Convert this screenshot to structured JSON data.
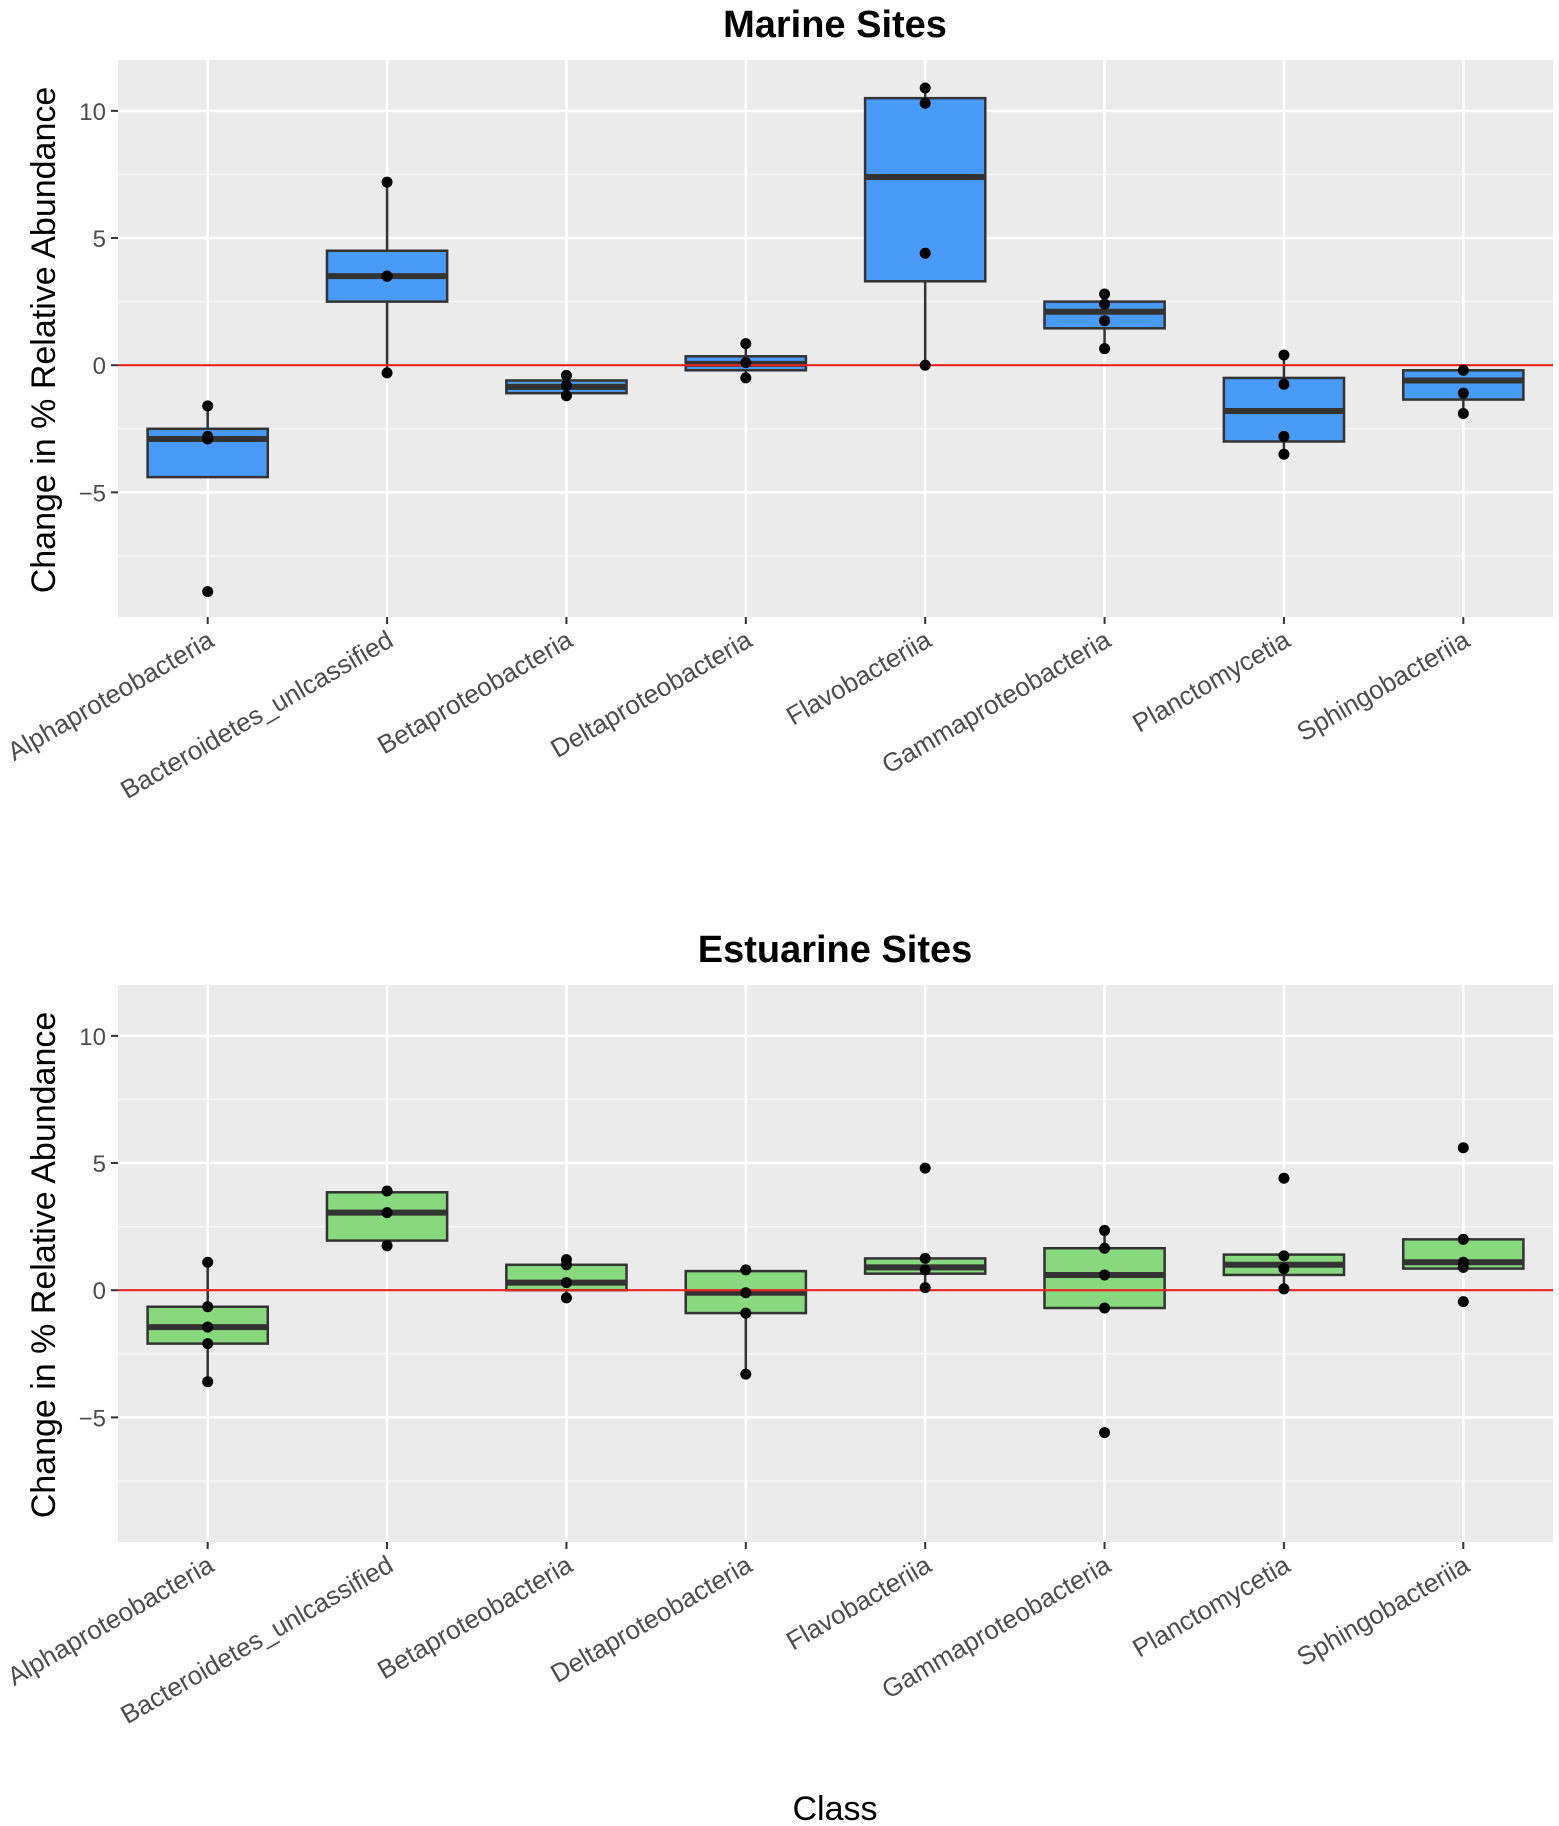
{
  "chart_data": [
    {
      "type": "box",
      "title": "Marine Sites",
      "xlabel": "",
      "ylabel": "Change in % Relative Abundance",
      "ylim": [
        -9.9,
        12
      ],
      "yticks": [
        -5,
        0,
        5,
        10
      ],
      "yticklabels": [
        "−5",
        "0",
        "5",
        "10"
      ],
      "reference_line": 0,
      "reference_color": "#e8231f",
      "fill_color": "#4a9bf7",
      "categories": [
        "Alphaproteobacteria",
        "Bacteroidetes_unlcassified",
        "Betaproteobacteria",
        "Deltaproteobacteria",
        "Flavobacteriia",
        "Gammaproteobacteria",
        "Planctomycetia",
        "Sphingobacteriia"
      ],
      "boxes": [
        {
          "q1": -4.4,
          "median": -2.9,
          "q3": -2.5,
          "whisker_low": -4.4,
          "whisker_high": -1.6,
          "points": [
            -1.6,
            -2.8,
            -2.9,
            -8.9
          ]
        },
        {
          "q1": 2.5,
          "median": 3.5,
          "q3": 4.5,
          "whisker_low": -0.3,
          "whisker_high": 7.2,
          "points": [
            7.2,
            3.5,
            3.5,
            -0.3
          ]
        },
        {
          "q1": -1.1,
          "median": -0.85,
          "q3": -0.6,
          "whisker_low": -1.2,
          "whisker_high": -0.4,
          "points": [
            -0.4,
            -0.8,
            -1.2
          ]
        },
        {
          "q1": -0.2,
          "median": 0.05,
          "q3": 0.35,
          "whisker_low": -0.5,
          "whisker_high": 0.85,
          "points": [
            0.85,
            0.1,
            -0.5
          ]
        },
        {
          "q1": 3.3,
          "median": 7.4,
          "q3": 10.5,
          "whisker_low": 0.0,
          "whisker_high": 10.9,
          "points": [
            10.9,
            10.3,
            4.4,
            0.0
          ]
        },
        {
          "q1": 1.45,
          "median": 2.1,
          "q3": 2.5,
          "whisker_low": 0.65,
          "whisker_high": 2.8,
          "points": [
            2.8,
            2.4,
            1.75,
            0.65
          ]
        },
        {
          "q1": -3.0,
          "median": -1.8,
          "q3": -0.5,
          "whisker_low": -3.5,
          "whisker_high": 0.4,
          "points": [
            0.4,
            -0.75,
            -2.8,
            -3.5
          ]
        },
        {
          "q1": -1.35,
          "median": -0.6,
          "q3": -0.2,
          "whisker_low": -1.9,
          "whisker_high": -0.2,
          "points": [
            -0.2,
            -1.1,
            -1.9
          ]
        }
      ]
    },
    {
      "type": "box",
      "title": "Estuarine Sites",
      "xlabel": "Class",
      "ylabel": "Change in % Relative Abundance",
      "ylim": [
        -9.9,
        12
      ],
      "yticks": [
        -5,
        0,
        5,
        10
      ],
      "yticklabels": [
        "−5",
        "0",
        "5",
        "10"
      ],
      "reference_line": 0,
      "reference_color": "#e8231f",
      "fill_color": "#88d97e",
      "categories": [
        "Alphaproteobacteria",
        "Bacteroidetes_unlcassified",
        "Betaproteobacteria",
        "Deltaproteobacteria",
        "Flavobacteriia",
        "Gammaproteobacteria",
        "Planctomycetia",
        "Sphingobacteriia"
      ],
      "boxes": [
        {
          "q1": -2.1,
          "median": -1.45,
          "q3": -0.65,
          "whisker_low": -3.6,
          "whisker_high": 1.1,
          "points": [
            1.1,
            -0.65,
            -1.45,
            -2.1,
            -3.6
          ]
        },
        {
          "q1": 1.95,
          "median": 3.05,
          "q3": 3.85,
          "whisker_low": 1.75,
          "whisker_high": 3.9,
          "points": [
            3.9,
            3.05,
            1.75
          ]
        },
        {
          "q1": 0.0,
          "median": 0.3,
          "q3": 1.0,
          "whisker_low": -0.3,
          "whisker_high": 1.2,
          "points": [
            1.2,
            1.0,
            0.3,
            -0.3
          ]
        },
        {
          "q1": -0.9,
          "median": -0.1,
          "q3": 0.75,
          "whisker_low": -3.3,
          "whisker_high": 0.8,
          "points": [
            0.8,
            -0.1,
            -0.9,
            -3.3
          ]
        },
        {
          "q1": 0.65,
          "median": 0.9,
          "q3": 1.25,
          "whisker_low": 0.1,
          "whisker_high": 1.25,
          "points": [
            4.8,
            1.25,
            0.8,
            0.1
          ]
        },
        {
          "q1": -0.7,
          "median": 0.6,
          "q3": 1.65,
          "whisker_low": -0.7,
          "whisker_high": 2.35,
          "points": [
            2.35,
            1.65,
            0.6,
            -0.7,
            -5.6
          ]
        },
        {
          "q1": 0.6,
          "median": 1.0,
          "q3": 1.4,
          "whisker_low": 0.05,
          "whisker_high": 1.4,
          "points": [
            4.4,
            1.35,
            0.85,
            0.05
          ]
        },
        {
          "q1": 0.85,
          "median": 1.1,
          "q3": 2.0,
          "whisker_low": 0.85,
          "whisker_high": 2.0,
          "points": [
            5.6,
            2.0,
            1.1,
            0.9,
            -0.45
          ]
        }
      ]
    }
  ]
}
